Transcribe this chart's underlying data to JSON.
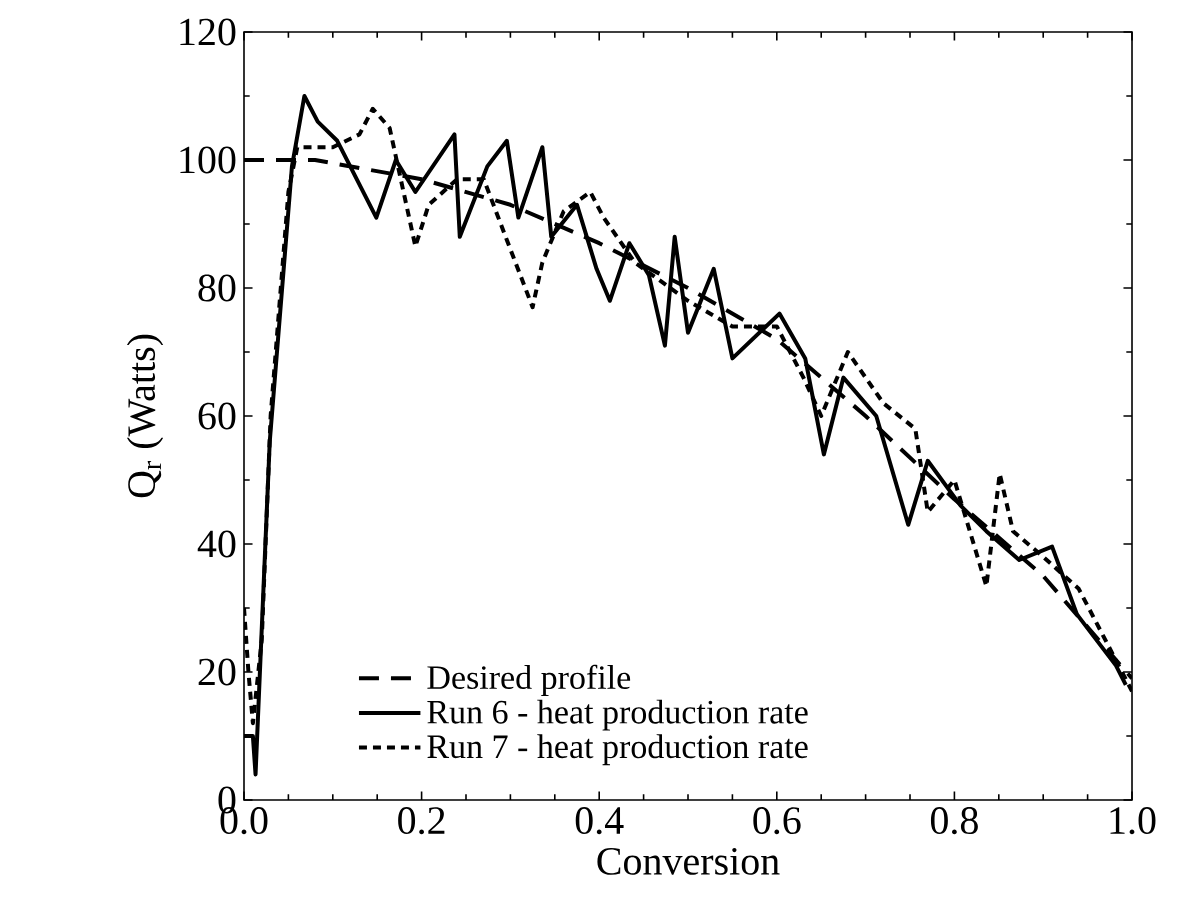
{
  "chart_data": {
    "type": "line",
    "xlabel": "Conversion",
    "ylabel": "Q$_{r}$ (Watts)",
    "xlim": [
      0,
      1
    ],
    "ylim": [
      0,
      120
    ],
    "xticks": [
      {
        "value": 0,
        "label": "0.0"
      },
      0.2,
      0.4,
      0.6,
      0.8,
      {
        "value": 1,
        "label": "1.0"
      }
    ],
    "yticks": [
      0,
      20,
      40,
      60,
      80,
      100,
      120
    ],
    "grid": false,
    "legend": "bottom left",
    "marker": "none",
    "series": [
      {
        "name": "Desired profile",
        "color": "#000000",
        "line_style": "dashed",
        "x": [
          0,
          0.08,
          0.1,
          0.2,
          0.3,
          0.4,
          0.5,
          0.6,
          0.7,
          0.8,
          0.9,
          1.0
        ],
        "values": [
          100,
          100,
          99.5,
          97,
          93,
          87,
          80,
          72,
          60,
          47,
          35,
          19
        ]
      },
      {
        "name": "Run 6 - heat production rate",
        "color": "#000000",
        "line_style": "solid",
        "x": [
          0,
          0.01,
          0.013,
          0.029,
          0.054,
          0.068,
          0.083,
          0.105,
          0.149,
          0.171,
          0.193,
          0.237,
          0.243,
          0.274,
          0.296,
          0.309,
          0.336,
          0.346,
          0.375,
          0.397,
          0.412,
          0.434,
          0.456,
          0.474,
          0.485,
          0.5,
          0.529,
          0.55,
          0.603,
          0.632,
          0.653,
          0.675,
          0.712,
          0.748,
          0.77,
          0.807,
          0.836,
          0.873,
          0.91,
          0.938,
          0.982,
          0.993
        ],
        "values": [
          10,
          10,
          4,
          56,
          99,
          110,
          106,
          103,
          91,
          100,
          95,
          104,
          88,
          99,
          103,
          91,
          102,
          88,
          93,
          83,
          78,
          87,
          82,
          71,
          88,
          73,
          83,
          69,
          76,
          69,
          54,
          66,
          60,
          43,
          53,
          46,
          42,
          37.5,
          39.6,
          29,
          21,
          18
        ]
      },
      {
        "name": "Run 7 - heat production rate",
        "color": "#000000",
        "line_style": "dotted",
        "x": [
          0,
          0.005,
          0.01,
          0.02,
          0.03,
          0.05,
          0.06,
          0.1,
          0.13,
          0.145,
          0.164,
          0.193,
          0.208,
          0.24,
          0.27,
          0.296,
          0.325,
          0.336,
          0.36,
          0.39,
          0.405,
          0.44,
          0.5,
          0.55,
          0.6,
          0.63,
          0.65,
          0.68,
          0.72,
          0.756,
          0.77,
          0.8,
          0.836,
          0.851,
          0.866,
          0.9,
          0.94,
          1.0
        ],
        "values": [
          30,
          20,
          12,
          25,
          60,
          95,
          102,
          102,
          104,
          108,
          105,
          86.5,
          93,
          97,
          97,
          87.5,
          77,
          84,
          92,
          95,
          91,
          84,
          78,
          74,
          74,
          66,
          60,
          70,
          62,
          58,
          45,
          50,
          33.4,
          51,
          42,
          38,
          33,
          17
        ]
      }
    ]
  }
}
